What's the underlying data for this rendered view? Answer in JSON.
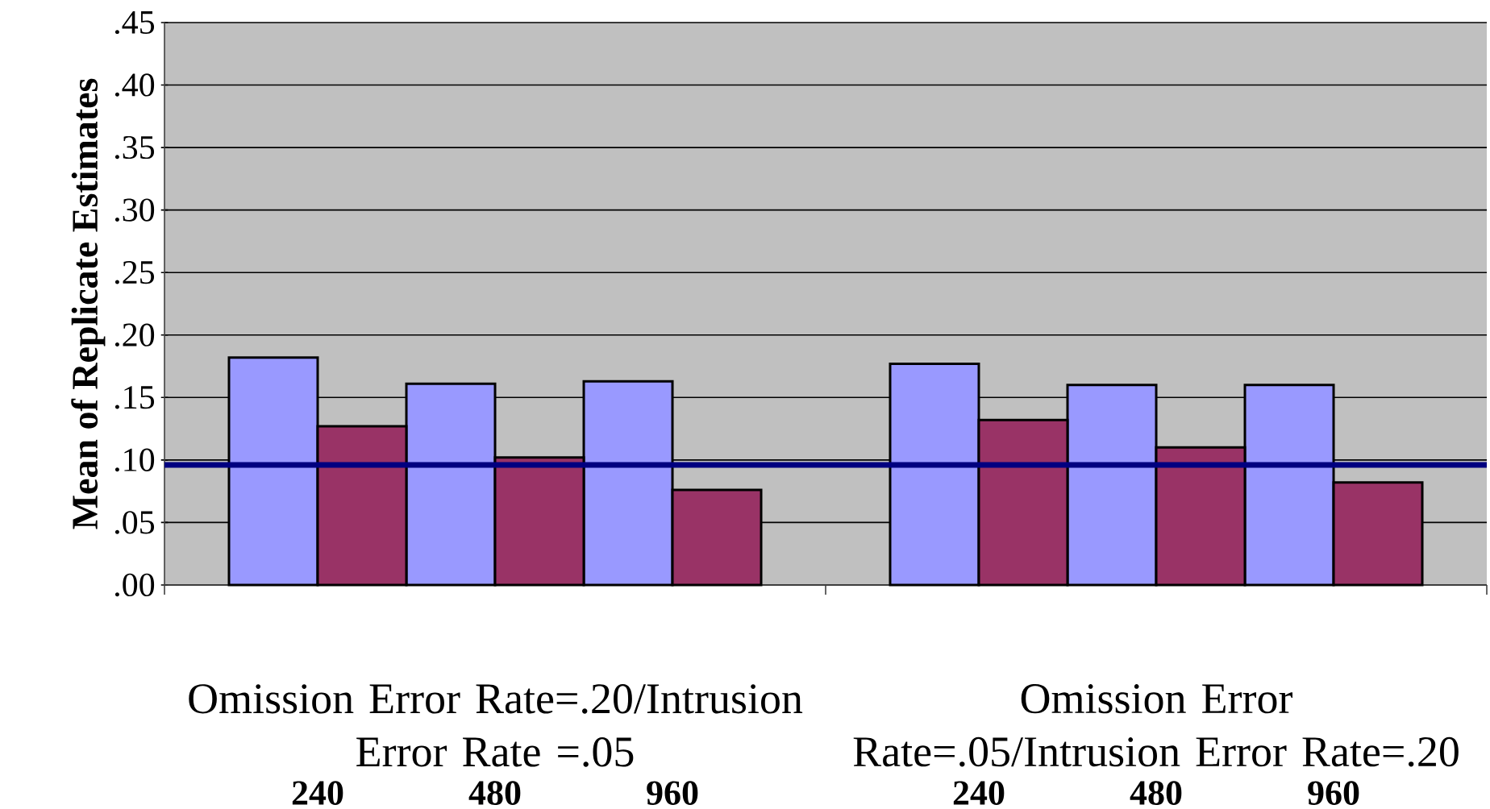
{
  "chart_data": {
    "type": "bar",
    "ylabel": "Mean of Replicate Estimates",
    "categories": [
      "240",
      "480",
      "960",
      "240",
      "480",
      "960"
    ],
    "series": [
      {
        "color": "#9999ff",
        "values": [
          0.182,
          0.161,
          0.163,
          0.177,
          0.16,
          0.16
        ]
      },
      {
        "color": "#993366",
        "values": [
          0.127,
          0.102,
          0.076,
          0.132,
          0.11,
          0.082
        ]
      }
    ],
    "ylim": [
      0,
      0.45
    ],
    "yticks": [
      {
        "value": 0,
        "label": ".00"
      },
      {
        "value": 0.05,
        "label": ".05"
      },
      {
        "value": 0.1,
        "label": ".10"
      },
      {
        "value": 0.15,
        "label": ".15"
      },
      {
        "value": 0.2,
        "label": ".20"
      },
      {
        "value": 0.25,
        "label": ".25"
      },
      {
        "value": 0.3,
        "label": ".30"
      },
      {
        "value": 0.35,
        "label": ".35"
      },
      {
        "value": 0.4,
        "label": ".40"
      },
      {
        "value": 0.45,
        "label": ".45"
      }
    ],
    "grid": "y",
    "ref_lines": [
      {
        "axis": "y",
        "value": 0.096,
        "color": "#000080"
      }
    ],
    "annotations": [
      "Omission Error Rate=.20/Intrusion Error Rate =.05",
      "Omission Error Rate=.05/Intrusion Error Rate=.20"
    ]
  }
}
